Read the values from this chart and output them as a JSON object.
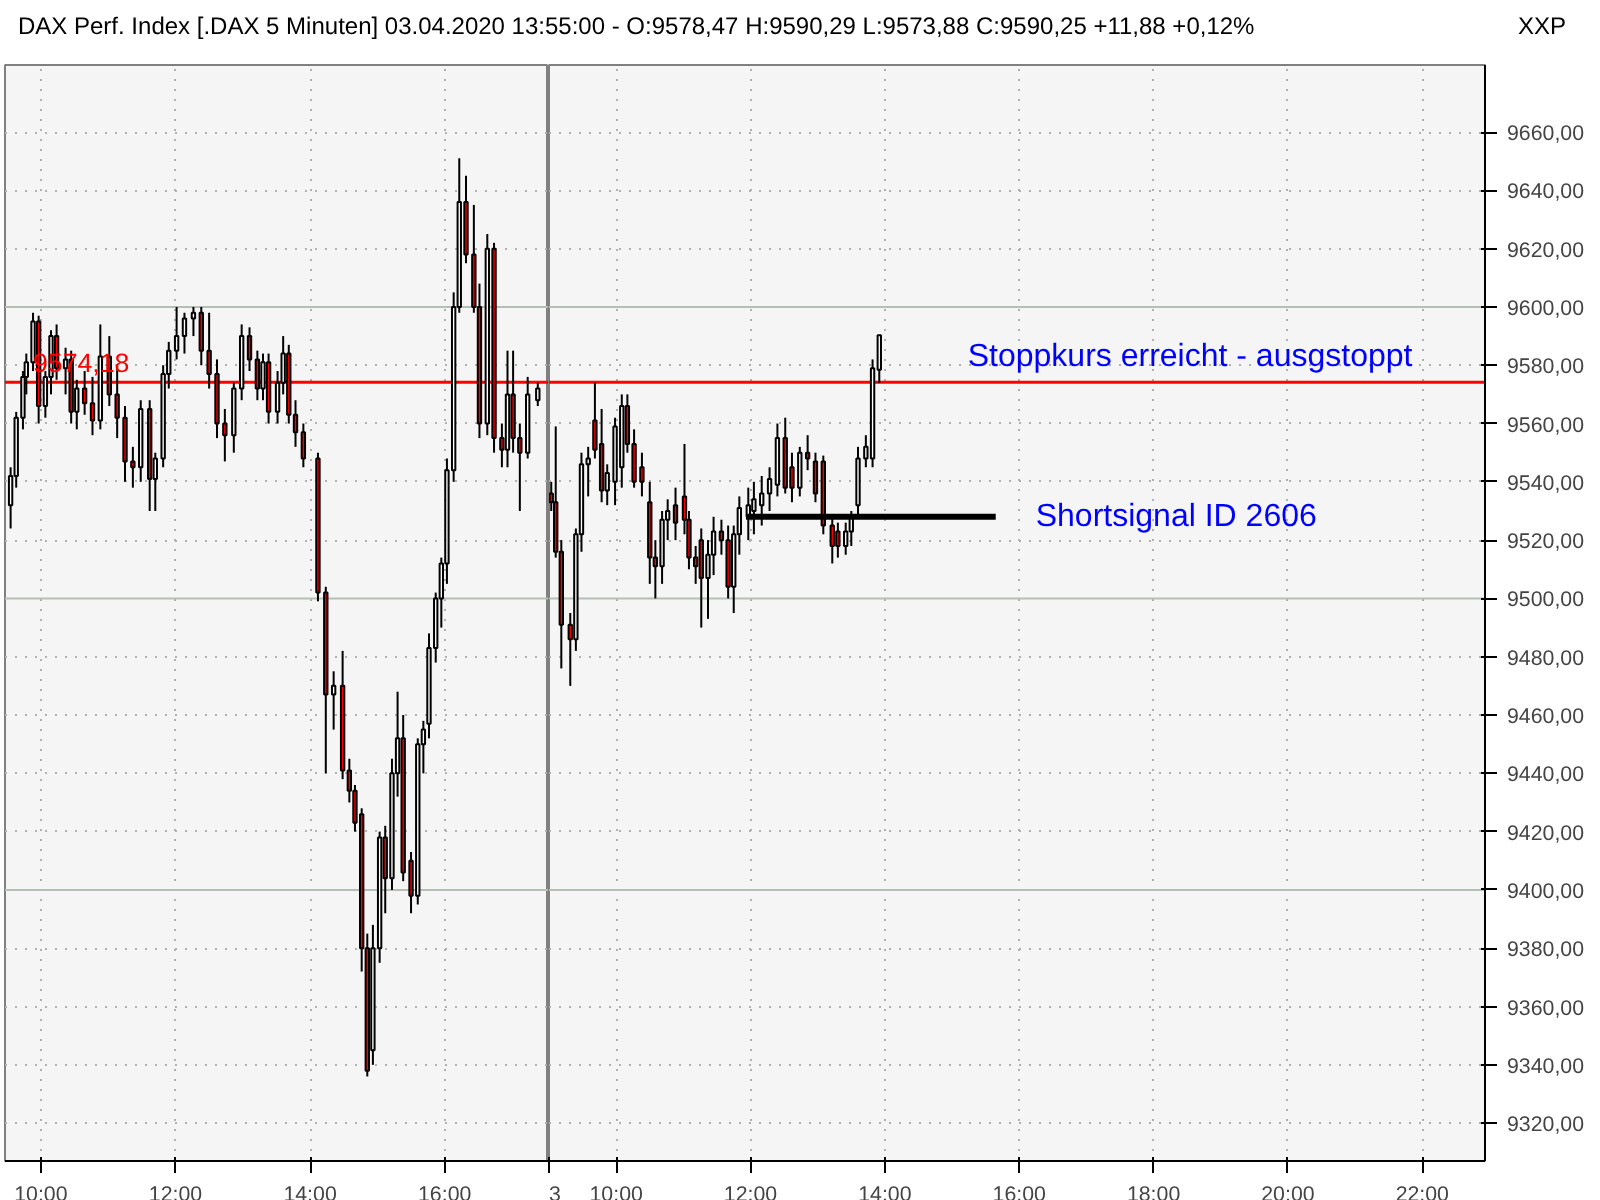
{
  "chart_data": [
    {
      "type": "candlestick",
      "title": "DAX Perf. Index [.DAX  5 Minuten] 03.04.2020 13:55:00 - O:9578,47 H:9590,29 L:9573,88 C:9590,25 +11,88 +0,12%",
      "x": [
        "2020-04-02T09:33",
        "2020-04-02T09:38",
        "2020-04-02T09:44",
        "2020-04-02T09:47",
        "2020-04-02T09:53",
        "2020-04-02T09:58",
        "2020-04-02T10:04",
        "2020-04-02T10:09",
        "2020-04-02T10:14",
        "2020-04-02T10:22",
        "2020-04-02T10:27",
        "2020-04-02T10:32",
        "2020-04-02T10:39",
        "2020-04-02T10:46",
        "2020-04-02T10:53",
        "2020-04-02T11:01",
        "2020-04-02T11:08",
        "2020-04-02T11:15",
        "2020-04-02T11:22",
        "2020-04-02T11:29",
        "2020-04-02T11:37",
        "2020-04-02T11:42",
        "2020-04-02T11:49",
        "2020-04-02T11:54",
        "2020-04-02T12:01",
        "2020-04-02T12:08",
        "2020-04-02T12:16",
        "2020-04-02T12:23",
        "2020-04-02T12:30",
        "2020-04-02T12:37",
        "2020-04-02T12:44",
        "2020-04-02T12:52",
        "2020-04-02T12:59",
        "2020-04-02T13:06",
        "2020-04-02T13:13",
        "2020-04-02T13:18",
        "2020-04-02T13:23",
        "2020-04-02T13:31",
        "2020-04-02T13:36",
        "2020-04-02T13:41",
        "2020-04-02T13:47",
        "2020-04-02T13:54",
        "2020-04-02T14:07",
        "2020-04-02T14:14",
        "2020-04-02T14:21",
        "2020-04-02T14:29",
        "2020-04-02T14:35",
        "2020-04-02T14:40",
        "2020-04-02T14:46",
        "2020-04-02T14:51",
        "2020-04-02T14:56",
        "2020-04-02T15:02",
        "2020-04-02T15:07",
        "2020-04-02T15:13",
        "2020-04-02T15:18",
        "2020-04-02T15:23",
        "2020-04-02T15:30",
        "2020-04-02T15:36",
        "2020-04-02T15:41",
        "2020-04-02T15:46",
        "2020-04-02T15:52",
        "2020-04-02T15:57",
        "2020-04-02T16:02",
        "2020-04-02T16:08",
        "2020-04-02T16:13",
        "2020-04-02T16:19",
        "2020-04-02T16:26",
        "2020-04-02T16:31",
        "2020-04-02T16:38",
        "2020-04-02T16:44",
        "2020-04-02T16:51",
        "2020-04-02T16:56",
        "2020-04-02T17:01",
        "2020-04-02T17:07",
        "2020-04-02T17:14",
        "2020-04-02T17:23"
      ],
      "ohlc": [
        [
          9532,
          9545,
          9524,
          9542
        ],
        [
          9542,
          9564,
          9538,
          9562
        ],
        [
          9562,
          9578,
          9558,
          9576
        ],
        [
          9576,
          9584,
          9570,
          9581
        ],
        [
          9581,
          9598,
          9578,
          9595
        ],
        [
          9595,
          9597,
          9560,
          9566
        ],
        [
          9566,
          9578,
          9562,
          9576
        ],
        [
          9576,
          9592,
          9570,
          9590
        ],
        [
          9590,
          9594,
          9575,
          9579
        ],
        [
          9579,
          9586,
          9570,
          9582
        ],
        [
          9582,
          9585,
          9560,
          9564
        ],
        [
          9564,
          9575,
          9558,
          9572
        ],
        [
          9572,
          9578,
          9563,
          9567
        ],
        [
          9567,
          9576,
          9556,
          9561
        ],
        [
          9561,
          9594,
          9558,
          9583
        ],
        [
          9583,
          9590,
          9566,
          9570
        ],
        [
          9570,
          9580,
          9555,
          9562
        ],
        [
          9562,
          9566,
          9540,
          9547
        ],
        [
          9547,
          9552,
          9538,
          9545
        ],
        [
          9545,
          9568,
          9540,
          9565
        ],
        [
          9565,
          9568,
          9530,
          9541
        ],
        [
          9541,
          9550,
          9530,
          9548
        ],
        [
          9548,
          9580,
          9545,
          9577
        ],
        [
          9577,
          9588,
          9572,
          9585
        ],
        [
          9585,
          9600,
          9582,
          9590
        ],
        [
          9590,
          9598,
          9584,
          9596
        ],
        [
          9596,
          9600,
          9590,
          9598
        ],
        [
          9598,
          9600,
          9580,
          9585
        ],
        [
          9585,
          9598,
          9572,
          9577
        ],
        [
          9577,
          9582,
          9555,
          9560
        ],
        [
          9560,
          9565,
          9547,
          9556
        ],
        [
          9556,
          9574,
          9550,
          9572
        ],
        [
          9572,
          9594,
          9568,
          9590
        ],
        [
          9590,
          9593,
          9578,
          9582
        ],
        [
          9582,
          9585,
          9568,
          9572
        ],
        [
          9572,
          9584,
          9568,
          9581
        ],
        [
          9581,
          9584,
          9560,
          9564
        ],
        [
          9564,
          9578,
          9560,
          9574
        ],
        [
          9574,
          9590,
          9570,
          9584
        ],
        [
          9584,
          9587,
          9560,
          9563
        ],
        [
          9563,
          9568,
          9552,
          9557
        ],
        [
          9557,
          9560,
          9545,
          9548
        ],
        [
          9548,
          9550,
          9499,
          9502
        ],
        [
          9502,
          9504,
          9440,
          9467
        ],
        [
          9467,
          9475,
          9455,
          9470
        ],
        [
          9470,
          9482,
          9438,
          9441
        ],
        [
          9441,
          9445,
          9430,
          9434
        ],
        [
          9434,
          9436,
          9420,
          9423
        ],
        [
          9426,
          9428,
          9372,
          9380
        ],
        [
          9380,
          9385,
          9336,
          9338
        ],
        [
          9345,
          9388,
          9340,
          9380
        ],
        [
          9380,
          9420,
          9375,
          9418
        ],
        [
          9418,
          9422,
          9392,
          9404
        ],
        [
          9404,
          9445,
          9400,
          9440
        ],
        [
          9440,
          9468,
          9432,
          9452
        ],
        [
          9452,
          9460,
          9403,
          9406
        ],
        [
          9410,
          9413,
          9392,
          9398
        ],
        [
          9398,
          9452,
          9395,
          9450
        ],
        [
          9450,
          9458,
          9440,
          9455
        ],
        [
          9457,
          9488,
          9452,
          9483
        ],
        [
          9483,
          9502,
          9478,
          9500
        ],
        [
          9500,
          9514,
          9490,
          9512
        ],
        [
          9512,
          9548,
          9505,
          9544
        ],
        [
          9544,
          9605,
          9540,
          9600
        ],
        [
          9600,
          9651,
          9598,
          9636
        ],
        [
          9636,
          9645,
          9615,
          9618
        ],
        [
          9618,
          9635,
          9598,
          9600
        ],
        [
          9600,
          9608,
          9555,
          9560
        ],
        [
          9560,
          9625,
          9556,
          9620
        ],
        [
          9620,
          9622,
          9550,
          9555
        ],
        [
          9555,
          9560,
          9545,
          9551
        ],
        [
          9551,
          9585,
          9545,
          9570
        ],
        [
          9570,
          9585,
          9550,
          9555
        ],
        [
          9555,
          9560,
          9530,
          9550
        ],
        [
          9550,
          9576,
          9548,
          9570
        ],
        [
          9568,
          9574,
          9566,
          9572
        ]
      ],
      "ref_lines": [
        {
          "axis": "y",
          "value": 9574.18,
          "label": "9574,18",
          "color": "#ff0000"
        }
      ],
      "xlim": [
        "2020-04-02T09:28",
        "2020-04-02T17:33"
      ],
      "xticks": [
        {
          "value": "2020-04-02T10:00",
          "label": "10:00"
        },
        {
          "value": "2020-04-02T12:00",
          "label": "12:00"
        },
        {
          "value": "2020-04-02T14:00",
          "label": "14:00"
        },
        {
          "value": "2020-04-02T16:00",
          "label": "16:00"
        }
      ],
      "ylim": [
        9307,
        9683
      ],
      "yticks": [
        9320,
        9340,
        9360,
        9380,
        9400,
        9420,
        9440,
        9460,
        9480,
        9500,
        9520,
        9540,
        9560,
        9580,
        9600,
        9620,
        9640,
        9660
      ],
      "tick_labels": "x",
      "grid": true
    },
    {
      "type": "candlestick",
      "annotations": [
        "XXP",
        {
          "text": "Stoppkurs erreicht - ausgstoppt",
          "x": "2020-04-03T15:14",
          "y": 9574.18
        }
      ],
      "x": [
        "2020-04-03T09:02",
        "2020-04-03T09:06",
        "2020-04-03T09:11",
        "2020-04-03T09:19",
        "2020-04-03T09:24",
        "2020-04-03T09:29",
        "2020-04-03T09:35",
        "2020-04-03T09:41",
        "2020-04-03T09:47",
        "2020-04-03T09:52",
        "2020-04-03T09:59",
        "2020-04-03T10:05",
        "2020-04-03T10:10",
        "2020-04-03T10:16",
        "2020-04-03T10:23",
        "2020-04-03T10:30",
        "2020-04-03T10:35",
        "2020-04-03T10:41",
        "2020-04-03T10:46",
        "2020-04-03T10:53",
        "2020-04-03T11:01",
        "2020-04-03T11:05",
        "2020-04-03T11:11",
        "2020-04-03T11:16",
        "2020-04-03T11:22",
        "2020-04-03T11:27",
        "2020-04-03T11:34",
        "2020-04-03T11:40",
        "2020-04-03T11:45",
        "2020-04-03T11:50",
        "2020-04-03T11:58",
        "2020-04-03T12:03",
        "2020-04-03T12:10",
        "2020-04-03T12:17",
        "2020-04-03T12:24",
        "2020-04-03T12:31",
        "2020-04-03T12:37",
        "2020-04-03T12:44",
        "2020-04-03T12:51",
        "2020-04-03T12:58",
        "2020-04-03T13:05",
        "2020-04-03T13:13",
        "2020-04-03T13:18",
        "2020-04-03T13:25",
        "2020-04-03T13:30",
        "2020-04-03T13:36",
        "2020-04-03T13:43",
        "2020-04-03T13:49",
        "2020-04-03T13:55"
      ],
      "ohlc": [
        [
          9536,
          9540,
          9530,
          9533
        ],
        [
          9533,
          9559,
          9514,
          9516
        ],
        [
          9516,
          9520,
          9476,
          9491
        ],
        [
          9491,
          9495,
          9470,
          9486
        ],
        [
          9486,
          9524,
          9482,
          9522
        ],
        [
          9522,
          9550,
          9516,
          9546
        ],
        [
          9546,
          9552,
          9535,
          9548
        ],
        [
          9561,
          9574,
          9548,
          9551
        ],
        [
          9553,
          9565,
          9533,
          9537
        ],
        [
          9537,
          9546,
          9532,
          9543
        ],
        [
          9540,
          9562,
          9532,
          9559
        ],
        [
          9545,
          9570,
          9538,
          9566
        ],
        [
          9566,
          9570,
          9550,
          9553
        ],
        [
          9553,
          9558,
          9538,
          9540
        ],
        [
          9545,
          9550,
          9535,
          9540
        ],
        [
          9533,
          9540,
          9505,
          9514
        ],
        [
          9514,
          9520,
          9500,
          9511
        ],
        [
          9511,
          9530,
          9505,
          9527
        ],
        [
          9527,
          9534,
          9520,
          9530
        ],
        [
          9532,
          9538,
          9520,
          9526
        ],
        [
          9535,
          9553,
          9522,
          9527
        ],
        [
          9527,
          9530,
          9510,
          9514
        ],
        [
          9514,
          9518,
          9505,
          9511
        ],
        [
          9520,
          9524,
          9490,
          9507
        ],
        [
          9507,
          9520,
          9493,
          9515
        ],
        [
          9515,
          9528,
          9508,
          9523
        ],
        [
          9523,
          9527,
          9515,
          9520
        ],
        [
          9520,
          9525,
          9500,
          9504
        ],
        [
          9504,
          9525,
          9495,
          9522
        ],
        [
          9522,
          9535,
          9515,
          9531
        ],
        [
          9528,
          9538,
          9520,
          9532
        ],
        [
          9530,
          9540,
          9522,
          9534
        ],
        [
          9532,
          9542,
          9525,
          9536
        ],
        [
          9536,
          9545,
          9530,
          9541
        ],
        [
          9539,
          9560,
          9535,
          9555
        ],
        [
          9555,
          9562,
          9536,
          9538
        ],
        [
          9545,
          9550,
          9533,
          9538
        ],
        [
          9538,
          9552,
          9535,
          9550
        ],
        [
          9550,
          9556,
          9544,
          9548
        ],
        [
          9547,
          9550,
          9533,
          9536
        ],
        [
          9547,
          9549,
          9522,
          9525
        ],
        [
          9525,
          9528,
          9512,
          9518
        ],
        [
          9523,
          9526,
          9514,
          9518
        ],
        [
          9518,
          9526,
          9515,
          9523
        ],
        [
          9523,
          9530,
          9518,
          9528
        ],
        [
          9532,
          9552,
          9528,
          9548
        ],
        [
          9548,
          9556,
          9545,
          9552
        ],
        [
          9548,
          9582,
          9545,
          9579
        ],
        [
          9578.47,
          9590.29,
          9573.88,
          9590.25
        ]
      ],
      "series": [
        {
          "type": "line",
          "name": "Shortsignal ID 2606",
          "color": "#000000",
          "x": [
            "2020-04-03T11:56",
            "2020-04-03T15:39"
          ],
          "values": [
            9528,
            9528
          ]
        }
      ],
      "ref_lines": [
        {
          "axis": "y",
          "value": 9574.18,
          "color": "#ff0000"
        }
      ],
      "xlim": [
        "2020-04-03T09:00",
        "2020-04-03T22:56"
      ],
      "xticks": [
        {
          "value": "2020-04-03T09:00",
          "label": "3"
        },
        {
          "value": "2020-04-03T10:00",
          "label": "10:00"
        },
        {
          "value": "2020-04-03T12:00",
          "label": "12:00"
        },
        {
          "value": "2020-04-03T14:00",
          "label": "14:00"
        },
        {
          "value": "2020-04-03T16:00",
          "label": "16:00"
        },
        {
          "value": "2020-04-03T18:00",
          "label": "18:00"
        },
        {
          "value": "2020-04-03T20:00",
          "label": "20:00"
        },
        {
          "value": "2020-04-03T22:00",
          "label": "22:00"
        }
      ],
      "ylim": [
        9307,
        9683
      ],
      "yticks": [
        {
          "value": 9320,
          "label": "9320,00"
        },
        {
          "value": 9340,
          "label": "9340,00"
        },
        {
          "value": 9360,
          "label": "9360,00"
        },
        {
          "value": 9380,
          "label": "9380,00"
        },
        {
          "value": 9400,
          "label": "9400,00"
        },
        {
          "value": 9420,
          "label": "9420,00"
        },
        {
          "value": 9440,
          "label": "9440,00"
        },
        {
          "value": 9460,
          "label": "9460,00"
        },
        {
          "value": 9480,
          "label": "9480,00"
        },
        {
          "value": 9500,
          "label": "9500,00"
        },
        {
          "value": 9520,
          "label": "9520,00"
        },
        {
          "value": 9540,
          "label": "9540,00"
        },
        {
          "value": 9560,
          "label": "9560,00"
        },
        {
          "value": 9580,
          "label": "9580,00"
        },
        {
          "value": 9600,
          "label": "9600,00"
        },
        {
          "value": 9620,
          "label": "9620,00"
        },
        {
          "value": 9640,
          "label": "9640,00"
        },
        {
          "value": 9660,
          "label": "9660,00"
        }
      ],
      "grid": true
    }
  ]
}
